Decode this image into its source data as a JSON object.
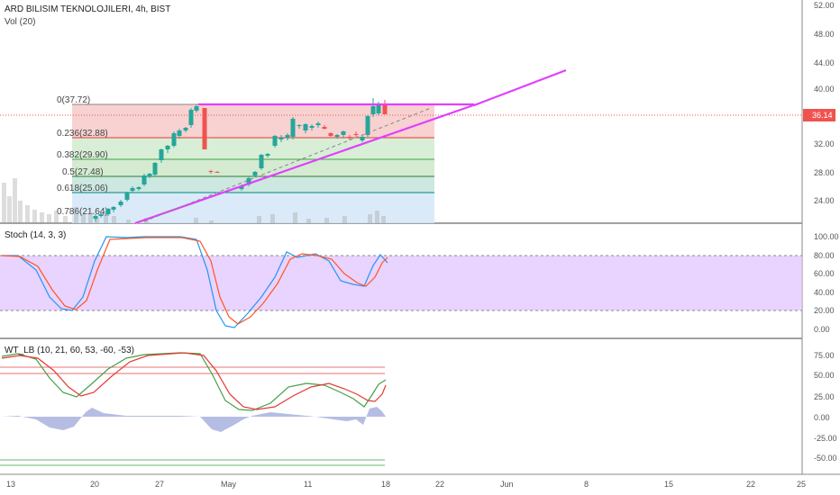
{
  "header": {
    "symbol": "ARD BILISIM TEKNOLOJILERI, 4h, BIST",
    "volume_label": "Vol (20)"
  },
  "price_axis": {
    "ticks": [
      "52.00",
      "48.00",
      "44.00",
      "40.00",
      "32.00",
      "28.00",
      "24.00"
    ],
    "last_price": "36.14",
    "last_price_color": "#ef5350"
  },
  "fib_levels": [
    {
      "label": "0(37.72)",
      "color": "#777777"
    },
    {
      "label": "0.236(32.88)",
      "color": "#e53935"
    },
    {
      "label": "0.382(29.90)",
      "color": "#43a047"
    },
    {
      "label": "0.5(27.48)",
      "color": "#2e7d32"
    },
    {
      "label": "0.618(25.06)",
      "color": "#00897b"
    },
    {
      "label": "0.786(21.64)",
      "color": "#1e88e5"
    }
  ],
  "stoch": {
    "title": "Stoch (14, 3, 3)",
    "ticks": [
      "100.00",
      "80.00",
      "60.00",
      "40.00",
      "20.00",
      "0.00"
    ]
  },
  "wt": {
    "title": "WT_LB (10, 21, 60, 53, -60, -53)",
    "ticks": [
      "75.00",
      "50.00",
      "25.00",
      "0.00",
      "-25.00",
      "-50.00"
    ]
  },
  "time_axis": {
    "labels": [
      "13",
      "20",
      "27",
      "May",
      "11",
      "18",
      "22",
      "Jun",
      "8",
      "15",
      "22",
      "25"
    ]
  },
  "colors": {
    "up": "#26a69a",
    "down": "#ef5350",
    "trendline": "#e040fb",
    "stoch_band": "#e1c4ff",
    "k_line": "#2196f3",
    "d_line": "#ff5722"
  }
}
